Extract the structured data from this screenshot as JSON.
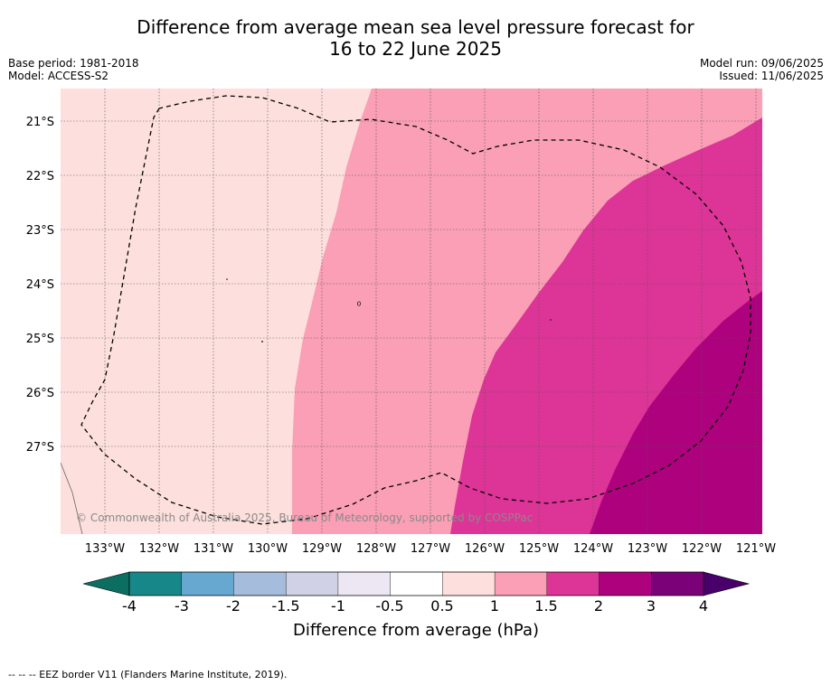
{
  "title": {
    "line1": "Difference from average mean sea level pressure forecast for",
    "line2": "16 to 22 June 2025"
  },
  "meta": {
    "base_period": "Base period: 1981-2018",
    "model": "Model: ACCESS-S2",
    "model_run": "Model run: 09/06/2025",
    "issued": "Issued: 11/06/2025"
  },
  "map": {
    "lat_labels": [
      "21°S",
      "22°S",
      "23°S",
      "24°S",
      "25°S",
      "26°S",
      "27°S"
    ],
    "lon_labels": [
      "133°W",
      "132°W",
      "131°W",
      "130°W",
      "129°W",
      "128°W",
      "127°W",
      "126°W",
      "125°W",
      "124°W",
      "123°W",
      "122°W",
      "121°W"
    ],
    "copyright": "© Commonwealth of Australia 2025, Bureau of Meteorology, supported by COSPPac",
    "zone_colors": {
      "0.5_to_1": "#fde0dd",
      "1_to_1.5": "#fa9fb5",
      "1.5_to_2": "#dd3497",
      "2_to_3": "#ae017e"
    }
  },
  "colorbar": {
    "tick_labels": [
      "-4",
      "-3",
      "-2",
      "-1.5",
      "-1",
      "-0.5",
      "0.5",
      "1",
      "1.5",
      "2",
      "3",
      "4"
    ],
    "colors": [
      "#17878a",
      "#66a8d0",
      "#a6bcdc",
      "#d0d1e6",
      "#ece7f2",
      "#ffffff",
      "#fde0dd",
      "#fa9fb5",
      "#dd3497",
      "#ae017e",
      "#7a0177"
    ],
    "under_color": "#0b6e61",
    "over_color": "#49006a",
    "title": "Difference from average (hPa)"
  },
  "footer": {
    "legend": "--  --  -- EEZ border V11 (Flanders Marine Institute, 2019)."
  }
}
